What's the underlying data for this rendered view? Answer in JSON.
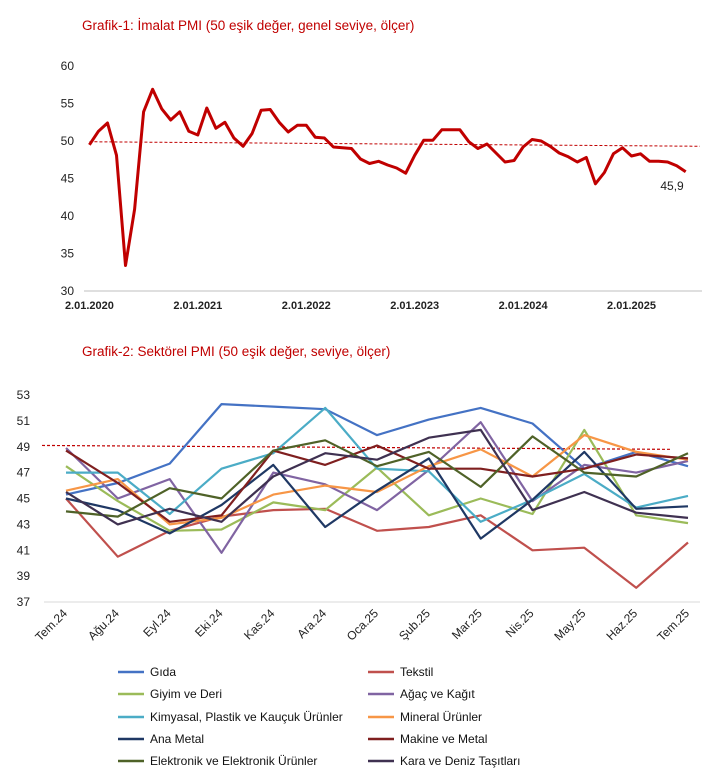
{
  "chart_data": [
    {
      "type": "line",
      "title": "Grafik-1: İmalat PMI (50 eşik değer, genel seviye, ölçer)",
      "x_tick_labels": [
        "2.01.2020",
        "2.01.2021",
        "2.01.2022",
        "2.01.2023",
        "2.01.2024",
        "2.01.2025"
      ],
      "ylim": [
        30,
        60
      ],
      "y_ticks": [
        "30",
        "35",
        "40",
        "45",
        "50",
        "55",
        "60"
      ],
      "threshold": 49.9,
      "last_value_label": "45,9",
      "series": [
        {
          "color": "#c00000",
          "x": [
            2020.0,
            2020.083,
            2020.167,
            2020.25,
            2020.333,
            2020.417,
            2020.5,
            2020.583,
            2020.667,
            2020.75,
            2020.833,
            2020.917,
            2021.0,
            2021.083,
            2021.167,
            2021.25,
            2021.333,
            2021.417,
            2021.5,
            2021.583,
            2021.667,
            2021.75,
            2021.833,
            2021.917,
            2022.0,
            2022.083,
            2022.167,
            2022.25,
            2022.333,
            2022.417,
            2022.5,
            2022.583,
            2022.667,
            2022.75,
            2022.833,
            2022.917,
            2023.0,
            2023.083,
            2023.167,
            2023.25,
            2023.333,
            2023.417,
            2023.5,
            2023.583,
            2023.667,
            2023.75,
            2023.833,
            2023.917,
            2024.0,
            2024.083,
            2024.167,
            2024.25,
            2024.333,
            2024.417,
            2024.5,
            2024.583,
            2024.667,
            2024.75,
            2024.833,
            2024.917,
            2025.0,
            2025.083,
            2025.167,
            2025.25,
            2025.333,
            2025.417,
            2025.5
          ],
          "values": [
            49.5,
            51.3,
            52.4,
            48.1,
            33.4,
            40.9,
            53.9,
            56.9,
            54.3,
            52.8,
            53.9,
            51.3,
            50.8,
            54.4,
            51.7,
            52.5,
            50.4,
            49.3,
            51.0,
            54.1,
            54.2,
            52.5,
            51.2,
            52.1,
            52.1,
            50.5,
            50.4,
            49.2,
            49.1,
            49.0,
            47.6,
            47.0,
            47.3,
            46.8,
            46.4,
            45.7,
            48.1,
            50.1,
            50.1,
            51.5,
            51.5,
            51.5,
            49.9,
            49.0,
            49.6,
            48.4,
            47.2,
            47.4,
            49.2,
            50.2,
            50.0,
            49.3,
            48.4,
            47.9,
            47.2,
            47.8,
            44.3,
            45.8,
            48.3,
            49.1,
            48.0,
            48.3,
            47.3,
            47.3,
            47.2,
            46.7,
            45.9
          ]
        }
      ]
    },
    {
      "type": "line",
      "title": "Grafik-2: Sektörel PMI (50 eşik değer, seviye, ölçer)",
      "categories": [
        "Tem.24",
        "Ağu.24",
        "Eyl.24",
        "Eki.24",
        "Kas.24",
        "Ara.24",
        "Oca.25",
        "Şub.25",
        "Mar.25",
        "Nis.25",
        "May.25",
        "Haz.25",
        "Tem.25"
      ],
      "ylim": [
        37,
        53
      ],
      "y_ticks": [
        "37",
        "39",
        "41",
        "43",
        "45",
        "47",
        "49",
        "51",
        "53"
      ],
      "threshold": 49.1,
      "series": [
        {
          "name": "Gıda",
          "color": "#4472c4",
          "values": [
            45.3,
            46.2,
            47.7,
            52.3,
            52.1,
            51.9,
            49.9,
            51.1,
            52.0,
            50.8,
            47.3,
            48.6,
            47.5
          ]
        },
        {
          "name": "Tekstil",
          "color": "#c0504d",
          "values": [
            45.0,
            40.5,
            42.5,
            43.6,
            44.1,
            44.2,
            42.5,
            42.8,
            43.7,
            41.0,
            41.2,
            38.1,
            41.6
          ]
        },
        {
          "name": "Giyim ve Deri",
          "color": "#9bbb59",
          "values": [
            47.5,
            44.8,
            42.5,
            42.6,
            44.7,
            44.1,
            47.4,
            43.7,
            45.0,
            43.8,
            50.3,
            43.7,
            43.1
          ]
        },
        {
          "name": "Ağaç ve Kağıt",
          "color": "#8064a2",
          "values": [
            48.9,
            45.0,
            46.5,
            40.8,
            47.0,
            46.1,
            44.1,
            47.2,
            50.9,
            44.8,
            47.6,
            47.0,
            47.9
          ]
        },
        {
          "name": "Kimyasal, Plastik ve Kauçuk Ürünler",
          "color": "#4bacc6",
          "values": [
            47.0,
            47.0,
            43.8,
            47.3,
            48.5,
            52.0,
            47.3,
            47.1,
            43.2,
            44.9,
            46.9,
            44.3,
            45.2
          ]
        },
        {
          "name": "Mineral Ürünler",
          "color": "#f79646",
          "values": [
            45.6,
            46.5,
            43.0,
            43.5,
            45.3,
            46.0,
            45.5,
            47.5,
            48.8,
            46.7,
            49.9,
            48.6,
            48.0
          ]
        },
        {
          "name": "Ana Metal",
          "color": "#1f3864",
          "values": [
            45.0,
            44.1,
            42.3,
            44.5,
            47.6,
            42.8,
            45.6,
            48.1,
            41.9,
            44.9,
            48.6,
            44.2,
            44.4
          ]
        },
        {
          "name": "Makine ve Metal",
          "color": "#7f1f1f",
          "values": [
            48.7,
            46.2,
            43.2,
            43.7,
            48.7,
            47.6,
            49.1,
            47.3,
            47.3,
            46.7,
            47.3,
            48.4,
            48.1
          ]
        },
        {
          "name": "Elektronik ve Elektronik Ürünler",
          "color": "#4f6228",
          "values": [
            44.0,
            43.6,
            45.8,
            45.0,
            48.7,
            49.5,
            47.5,
            48.6,
            45.9,
            49.8,
            47.0,
            46.7,
            48.5
          ]
        },
        {
          "name": "Kara ve Deniz Taşıtları",
          "color": "#3f3151",
          "values": [
            45.5,
            43.0,
            44.2,
            43.2,
            46.7,
            48.5,
            48.0,
            49.7,
            50.3,
            44.1,
            45.5,
            43.9,
            43.5
          ]
        }
      ]
    }
  ]
}
